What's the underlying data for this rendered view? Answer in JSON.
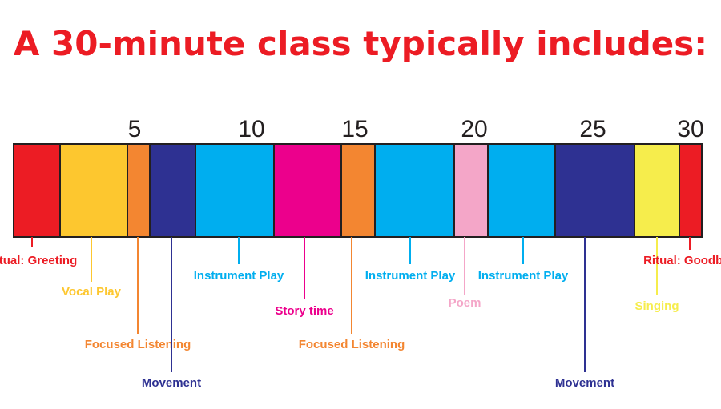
{
  "title": "A 30-minute class typically includes:",
  "title_color": "#ec1c24",
  "ticks": [
    {
      "label": "5",
      "minute": 5
    },
    {
      "label": "10",
      "minute": 10
    },
    {
      "label": "15",
      "minute": 15
    },
    {
      "label": "20",
      "minute": 20
    },
    {
      "label": "25",
      "minute": 25
    },
    {
      "label": "30",
      "minute": 30
    }
  ],
  "segments": [
    {
      "label": "Ritual: Greeting",
      "start": 0,
      "end": 2,
      "color": "#ec1c24",
      "label_color": "#ec1c24"
    },
    {
      "label": "Vocal Play",
      "start": 2,
      "end": 5,
      "color": "#fdc72f",
      "label_color": "#fdc72f"
    },
    {
      "label": "Focused Listening",
      "start": 5,
      "end": 6,
      "color": "#f38631",
      "label_color": "#f38631"
    },
    {
      "label": "Movement",
      "start": 6,
      "end": 8,
      "color": "#2e3192",
      "label_color": "#2e3192"
    },
    {
      "label": "Instrument Play",
      "start": 8,
      "end": 11.5,
      "color": "#00aeef",
      "label_color": "#00aeef"
    },
    {
      "label": "Story time",
      "start": 11.5,
      "end": 14.5,
      "color": "#ec008c",
      "label_color": "#ec008c"
    },
    {
      "label": "Focused Listening",
      "start": 14.5,
      "end": 16,
      "color": "#f38631",
      "label_color": "#f38631"
    },
    {
      "label": "Instrument Play",
      "start": 16,
      "end": 19.5,
      "color": "#00aeef",
      "label_color": "#00aeef"
    },
    {
      "label": "Poem",
      "start": 19.5,
      "end": 21,
      "color": "#f4a6c8",
      "label_color": "#f4a6c8"
    },
    {
      "label": "Instrument Play",
      "start": 21,
      "end": 24.5,
      "color": "#00aeef",
      "label_color": "#00aeef"
    },
    {
      "label": "Movement",
      "start": 24.5,
      "end": 28,
      "color": "#2e3192",
      "label_color": "#2e3192"
    },
    {
      "label": "Singing",
      "start": 28,
      "end": 30,
      "color": "#f6ed4c",
      "label_color": "#f6ed4c"
    },
    {
      "label": "Ritual: Goodbye",
      "start": 30,
      "end": 31,
      "color": "#ec1c24",
      "label_color": "#ec1c24"
    }
  ]
}
